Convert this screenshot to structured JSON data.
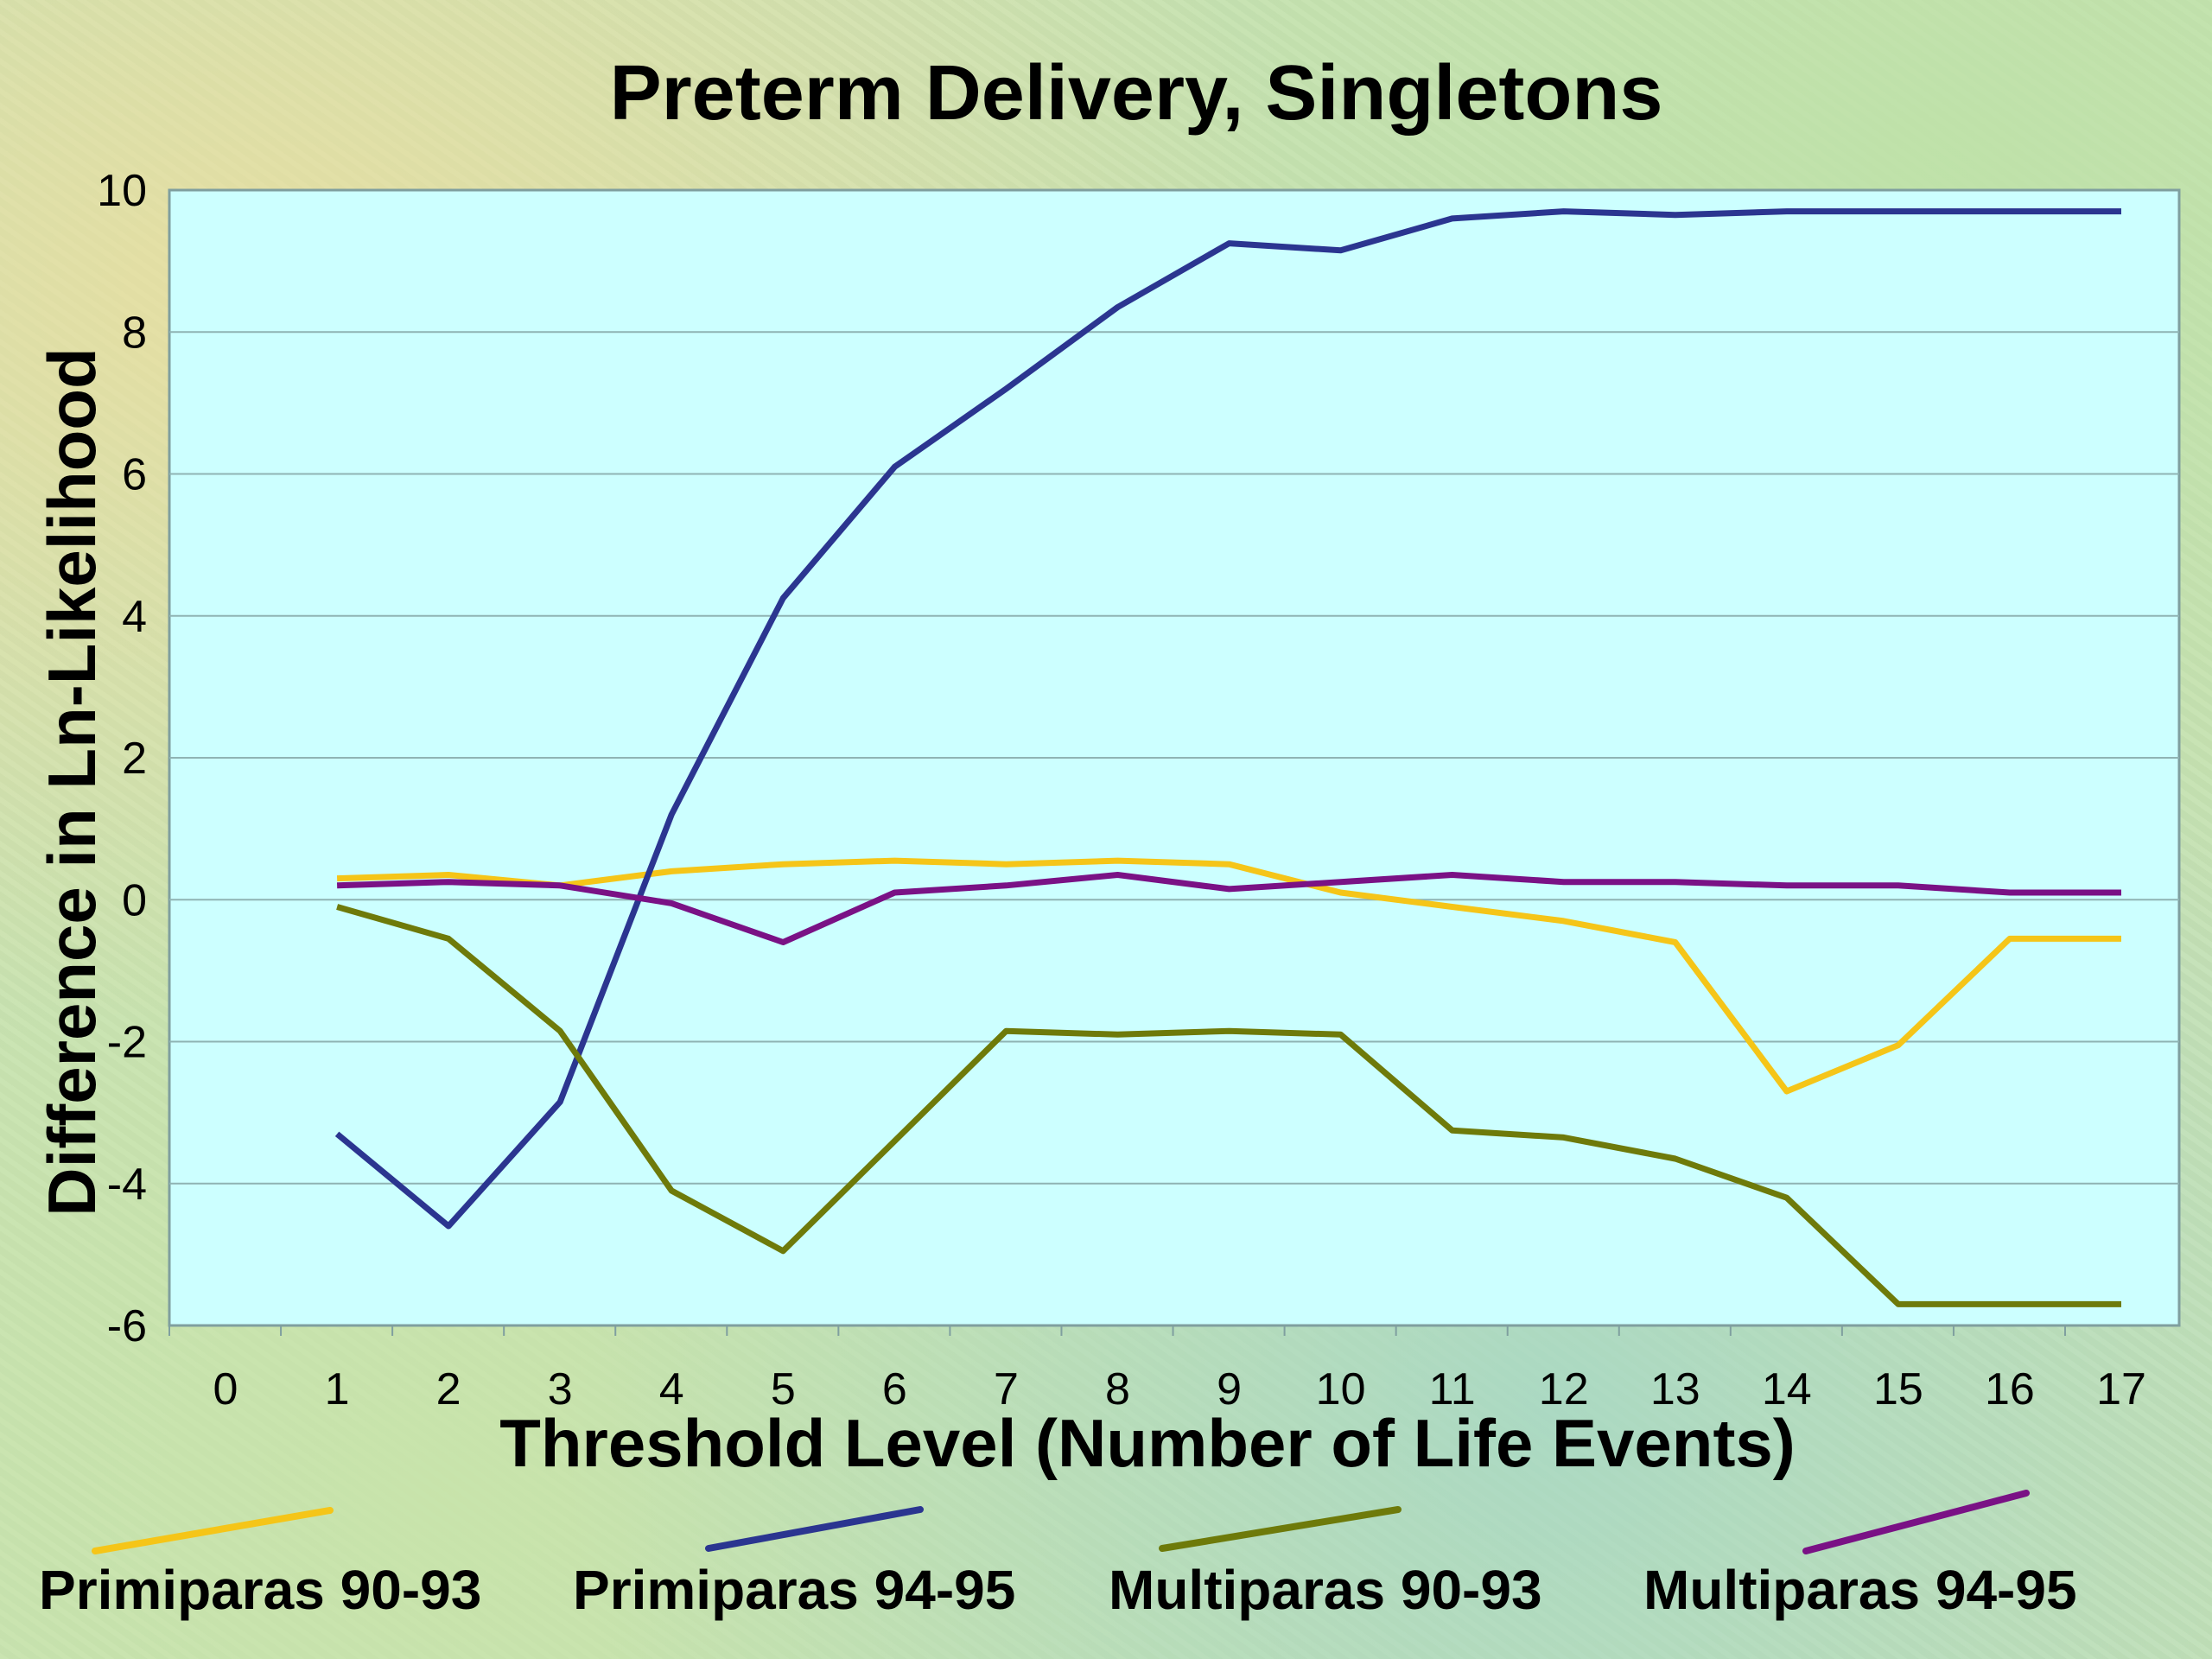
{
  "chart_data": {
    "type": "line",
    "title": "Preterm Delivery, Singletons",
    "xlabel": "Threshold Level (Number of Life Events)",
    "ylabel": "Difference in Ln-Likelihood",
    "x_ticks": [
      "0",
      "1",
      "2",
      "3",
      "4",
      "5",
      "6",
      "7",
      "8",
      "9",
      "10",
      "11",
      "12",
      "13",
      "14",
      "15",
      "16",
      "17"
    ],
    "y_ticks": [
      "10",
      "8",
      "6",
      "4",
      "2",
      "0",
      "-2",
      "-4",
      "-6"
    ],
    "xlim": [
      0,
      17
    ],
    "ylim": [
      -6,
      10
    ],
    "grid": true,
    "plot_background": "#ccffff",
    "legend_position": "bottom",
    "x": [
      1,
      2,
      3,
      4,
      5,
      6,
      7,
      8,
      9,
      10,
      11,
      12,
      13,
      14,
      15,
      16,
      17
    ],
    "series": [
      {
        "name": "Primiparas 90-93",
        "color": "#f5c518",
        "values": [
          0.3,
          0.35,
          0.2,
          0.4,
          0.5,
          0.55,
          0.5,
          0.55,
          0.5,
          0.1,
          -0.1,
          -0.3,
          -0.6,
          -2.7,
          -2.05,
          -0.55,
          -0.55
        ]
      },
      {
        "name": "Primiparas 94-95",
        "color": "#2b3590",
        "values": [
          -3.3,
          -4.6,
          -2.85,
          1.2,
          4.25,
          6.1,
          7.2,
          8.35,
          9.25,
          9.15,
          9.6,
          9.7,
          9.65,
          9.7,
          9.7,
          9.7,
          9.7
        ]
      },
      {
        "name": "Multiparas 90-93",
        "color": "#6e7a0a",
        "values": [
          -0.1,
          -0.55,
          -1.85,
          -4.1,
          -4.95,
          -3.4,
          -1.85,
          -1.9,
          -1.85,
          -1.9,
          -3.25,
          -3.35,
          -3.65,
          -4.2,
          -5.7,
          -5.7,
          -5.7
        ]
      },
      {
        "name": "Multiparas 94-95",
        "color": "#7a1185",
        "values": [
          0.2,
          0.25,
          0.2,
          -0.05,
          -0.6,
          0.1,
          0.2,
          0.35,
          0.15,
          0.25,
          0.35,
          0.25,
          0.25,
          0.2,
          0.2,
          0.1,
          0.1
        ]
      }
    ]
  }
}
